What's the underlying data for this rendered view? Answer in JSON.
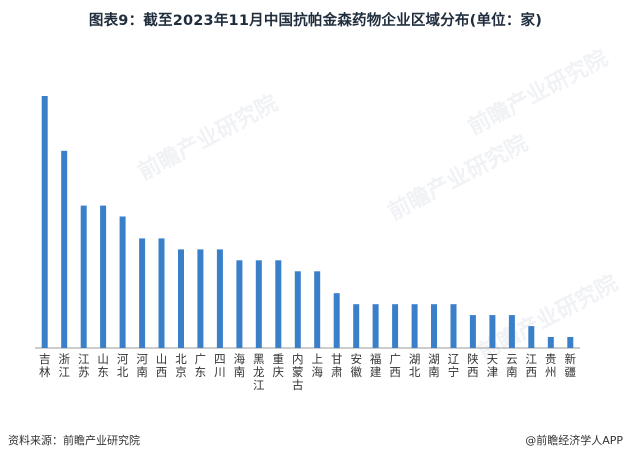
{
  "title": "图表9：截至2023年11月中国抗帕金森药物企业区域分布(单位：家)",
  "footer": {
    "source": "资料来源：前瞻产业研究院",
    "brand": "@前瞻经济学人APP"
  },
  "watermark": "前瞻产业研究院",
  "colors": {
    "bar": "#3a7fc9",
    "axis": "#999999",
    "text": "#333333"
  },
  "chart_data": {
    "type": "bar",
    "title": "图表9：截至2023年11月中国抗帕金森药物企业区域分布(单位：家)",
    "xlabel": "",
    "ylabel": "",
    "ylim": [
      0,
      24
    ],
    "grid": false,
    "categories": [
      "吉林",
      "浙江",
      "江苏",
      "山东",
      "河北",
      "河南",
      "山西",
      "北京",
      "广东",
      "四川",
      "海南",
      "黑龙江",
      "重庆",
      "内蒙古",
      "上海",
      "甘肃",
      "安徽",
      "福建",
      "广西",
      "湖北",
      "湖南",
      "辽宁",
      "陕西",
      "天津",
      "云南",
      "江西",
      "贵州",
      "新疆"
    ],
    "values": [
      23,
      18,
      13,
      13,
      12,
      10,
      10,
      9,
      9,
      9,
      8,
      8,
      8,
      7,
      7,
      5,
      4,
      4,
      4,
      4,
      4,
      4,
      3,
      3,
      3,
      2,
      1,
      1
    ]
  }
}
